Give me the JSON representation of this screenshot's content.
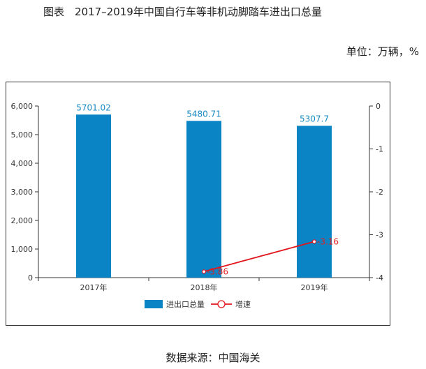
{
  "figure_title": "图表　2017–2019年中国自行车等非机动脚踏车进出口总量",
  "unit_label": "单位：万辆，%",
  "source_label": "数据来源：中国海关",
  "colors": {
    "bar": "#0a84c4",
    "line": "#e3141b",
    "axis": "#333333"
  },
  "chart_data": {
    "type": "bar+line",
    "categories": [
      "2017年",
      "2018年",
      "2019年"
    ],
    "series": [
      {
        "name": "进出口总量",
        "type": "bar",
        "axis": "left",
        "values": [
          5701.02,
          5480.71,
          5307.7
        ],
        "labels": [
          "5701.02",
          "5480.71",
          "5307.7"
        ]
      },
      {
        "name": "增速",
        "type": "line",
        "axis": "right",
        "values": [
          null,
          -3.86,
          -3.16
        ],
        "labels": [
          "",
          "-3.86",
          "-3.16"
        ]
      }
    ],
    "left_axis": {
      "min": 0,
      "max": 6000,
      "ticks": [
        0,
        1000,
        2000,
        3000,
        4000,
        5000,
        6000
      ],
      "tick_labels": [
        "0",
        "1,000",
        "2,000",
        "3,000",
        "4,000",
        "5,000",
        "6,000"
      ]
    },
    "right_axis": {
      "min": -4,
      "max": 0,
      "ticks": [
        0,
        -1,
        -2,
        -3,
        -4
      ],
      "tick_labels": [
        "0",
        "-1",
        "-2",
        "-3",
        "-4"
      ]
    },
    "legend": [
      "进出口总量",
      "增速"
    ],
    "legend_position": "bottom"
  }
}
